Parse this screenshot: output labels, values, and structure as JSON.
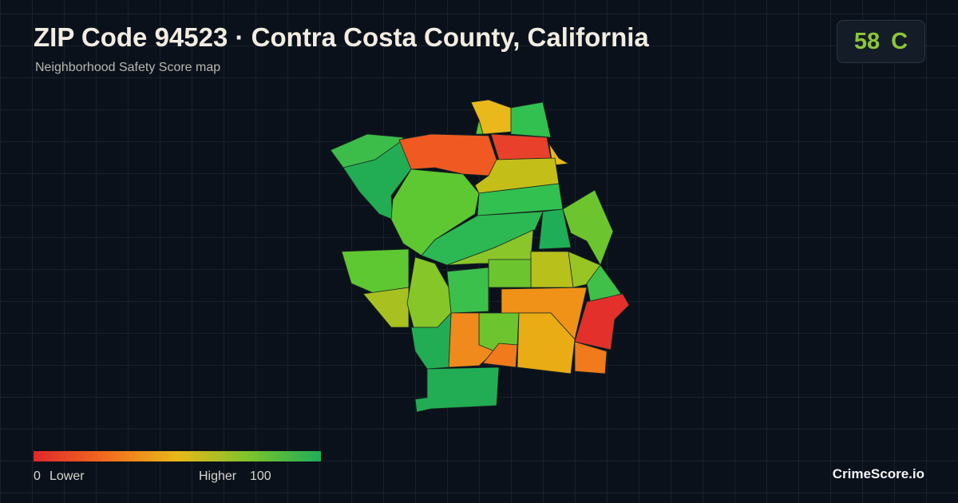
{
  "header": {
    "title": "ZIP Code 94523 · Contra Costa County, California",
    "subtitle": "Neighborhood Safety Score map"
  },
  "score": {
    "value": 58,
    "grade": "C"
  },
  "legend": {
    "min": 0,
    "min_label": "Lower",
    "max_label": "Higher",
    "max": 100
  },
  "brand": "CrimeScore.io"
}
